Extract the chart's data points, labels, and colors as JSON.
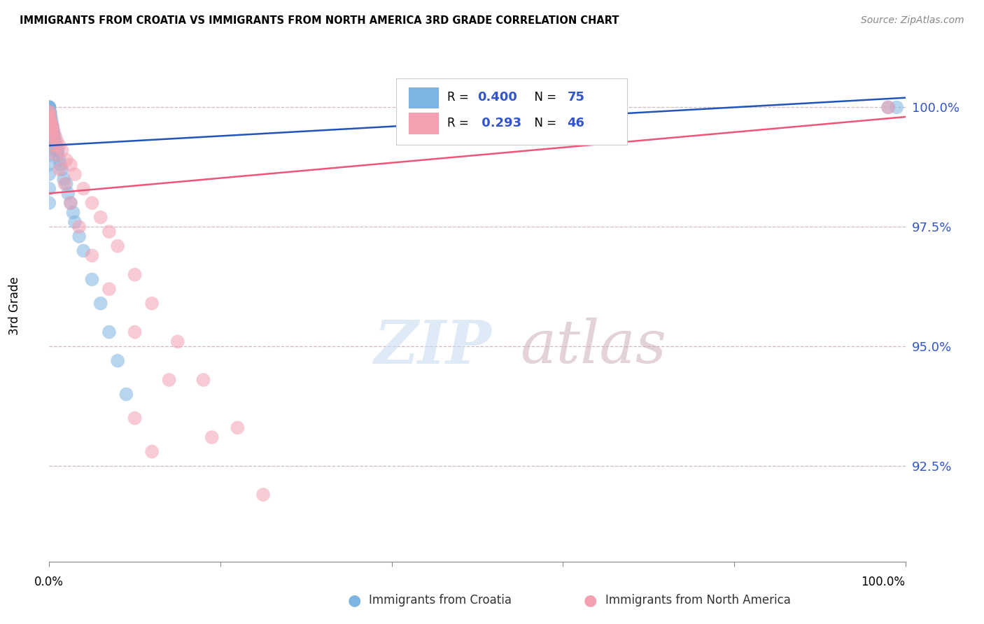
{
  "title": "IMMIGRANTS FROM CROATIA VS IMMIGRANTS FROM NORTH AMERICA 3RD GRADE CORRELATION CHART",
  "source": "Source: ZipAtlas.com",
  "ylabel": "3rd Grade",
  "y_ticks": [
    0.925,
    0.95,
    0.975,
    1.0
  ],
  "y_tick_labels": [
    "92.5%",
    "95.0%",
    "97.5%",
    "100.0%"
  ],
  "x_range": [
    0.0,
    1.0
  ],
  "y_range": [
    0.905,
    1.012
  ],
  "legend_R_blue": "0.400",
  "legend_N_blue": "75",
  "legend_R_pink": "0.293",
  "legend_N_pink": "46",
  "blue_color": "#7EB4E2",
  "pink_color": "#F4A0B0",
  "blue_line_color": "#2255BB",
  "pink_line_color": "#EE5577",
  "watermark_zip": "ZIP",
  "watermark_atlas": "atlas",
  "croatia_x": [
    0.0,
    0.0,
    0.0,
    0.0,
    0.0,
    0.0,
    0.0,
    0.0,
    0.0,
    0.0,
    0.0,
    0.0,
    0.0,
    0.0,
    0.0,
    0.0,
    0.0,
    0.0,
    0.001,
    0.001,
    0.001,
    0.001,
    0.001,
    0.001,
    0.001,
    0.001,
    0.001,
    0.002,
    0.002,
    0.002,
    0.002,
    0.002,
    0.003,
    0.003,
    0.003,
    0.004,
    0.004,
    0.004,
    0.005,
    0.005,
    0.006,
    0.006,
    0.007,
    0.008,
    0.009,
    0.01,
    0.01,
    0.012,
    0.013,
    0.015,
    0.017,
    0.02,
    0.022,
    0.025,
    0.028,
    0.03,
    0.035,
    0.04,
    0.05,
    0.06,
    0.07,
    0.08,
    0.09,
    0.0,
    0.0,
    0.0,
    0.0,
    0.0,
    0.0,
    0.0,
    0.0,
    0.0,
    0.0,
    0.98,
    0.99
  ],
  "croatia_y": [
    1.0,
    1.0,
    1.0,
    1.0,
    1.0,
    1.0,
    0.999,
    0.999,
    0.999,
    0.999,
    0.998,
    0.998,
    0.998,
    0.997,
    0.997,
    0.997,
    0.996,
    0.996,
    0.999,
    0.999,
    0.998,
    0.998,
    0.997,
    0.997,
    0.996,
    0.996,
    0.995,
    0.998,
    0.997,
    0.996,
    0.995,
    0.994,
    0.997,
    0.996,
    0.995,
    0.996,
    0.995,
    0.994,
    0.995,
    0.994,
    0.994,
    0.993,
    0.993,
    0.992,
    0.991,
    0.991,
    0.99,
    0.989,
    0.988,
    0.987,
    0.985,
    0.984,
    0.982,
    0.98,
    0.978,
    0.976,
    0.973,
    0.97,
    0.964,
    0.959,
    0.953,
    0.947,
    0.94,
    0.995,
    0.994,
    0.993,
    0.992,
    0.991,
    0.99,
    0.988,
    0.986,
    0.983,
    0.98,
    1.0,
    1.0
  ],
  "northam_x": [
    0.0,
    0.0,
    0.0,
    0.0,
    0.001,
    0.001,
    0.002,
    0.003,
    0.004,
    0.005,
    0.007,
    0.009,
    0.012,
    0.015,
    0.02,
    0.025,
    0.03,
    0.04,
    0.05,
    0.06,
    0.07,
    0.08,
    0.1,
    0.12,
    0.15,
    0.18,
    0.22,
    0.0,
    0.001,
    0.002,
    0.003,
    0.005,
    0.008,
    0.012,
    0.018,
    0.025,
    0.035,
    0.05,
    0.07,
    0.1,
    0.14,
    0.19,
    0.25,
    0.1,
    0.12,
    0.98
  ],
  "northam_y": [
    0.999,
    0.999,
    0.998,
    0.998,
    0.998,
    0.997,
    0.997,
    0.996,
    0.996,
    0.995,
    0.994,
    0.993,
    0.992,
    0.991,
    0.989,
    0.988,
    0.986,
    0.983,
    0.98,
    0.977,
    0.974,
    0.971,
    0.965,
    0.959,
    0.951,
    0.943,
    0.933,
    0.997,
    0.996,
    0.995,
    0.994,
    0.992,
    0.99,
    0.987,
    0.984,
    0.98,
    0.975,
    0.969,
    0.962,
    0.953,
    0.943,
    0.931,
    0.919,
    0.935,
    0.928,
    1.0
  ],
  "blue_trend_x": [
    0.0,
    1.0
  ],
  "blue_trend_y": [
    0.992,
    1.002
  ],
  "pink_trend_x": [
    0.0,
    1.0
  ],
  "pink_trend_y": [
    0.982,
    0.998
  ]
}
